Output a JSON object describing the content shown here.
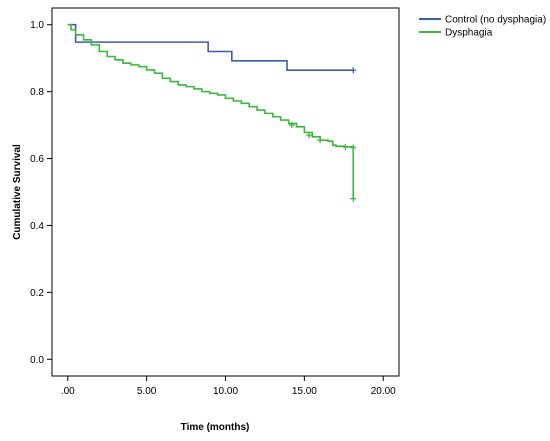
{
  "chart_data": {
    "type": "line",
    "subtype": "kaplan-meier-step",
    "xlabel": "Time (months)",
    "ylabel": "Cumulative Survival",
    "xlim": [
      -1,
      21
    ],
    "ylim": [
      -0.05,
      1.05
    ],
    "x_ticks": [
      0,
      5,
      10,
      15,
      20
    ],
    "x_tick_labels": [
      ".00",
      "5.00",
      "10.00",
      "15.00",
      "20.00"
    ],
    "y_ticks": [
      0.0,
      0.2,
      0.4,
      0.6,
      0.8,
      1.0
    ],
    "y_tick_labels": [
      "0.0",
      "0.2",
      "0.4",
      "0.6",
      "0.8",
      "1.0"
    ],
    "grid": false,
    "legend_position": "top-right, outside plot",
    "series": [
      {
        "name": "Control (no dysphagia)",
        "color": "#3a5db0",
        "x": [
          0,
          0.5,
          0.5,
          8.9,
          8.9,
          10.4,
          10.4,
          13.9,
          13.9,
          18.1
        ],
        "y": [
          1.0,
          1.0,
          0.948,
          0.948,
          0.92,
          0.92,
          0.892,
          0.892,
          0.864,
          0.864
        ],
        "censored": [
          {
            "x": 18.1,
            "y": 0.864
          }
        ]
      },
      {
        "name": "Dysphagia",
        "color": "#3cb83c",
        "x": [
          0,
          0.2,
          0.5,
          1.0,
          1.5,
          2.0,
          2.5,
          3.0,
          3.5,
          4.0,
          4.5,
          5.0,
          5.5,
          6.0,
          6.5,
          7.0,
          7.5,
          8.0,
          8.5,
          9.0,
          9.5,
          10.0,
          10.5,
          11.0,
          11.5,
          12.0,
          12.5,
          13.0,
          13.5,
          14.0,
          14.5,
          15.0,
          15.5,
          16.0,
          16.5,
          16.8,
          17.0,
          17.5,
          18.0,
          18.1,
          18.1
        ],
        "y": [
          1.0,
          0.985,
          0.97,
          0.955,
          0.94,
          0.92,
          0.905,
          0.895,
          0.885,
          0.88,
          0.875,
          0.865,
          0.855,
          0.84,
          0.83,
          0.82,
          0.815,
          0.808,
          0.8,
          0.795,
          0.79,
          0.78,
          0.772,
          0.765,
          0.755,
          0.745,
          0.735,
          0.725,
          0.715,
          0.705,
          0.695,
          0.678,
          0.665,
          0.655,
          0.652,
          0.64,
          0.637,
          0.635,
          0.633,
          0.633,
          0.48
        ],
        "censored": [
          {
            "x": 14.2,
            "y": 0.7
          },
          {
            "x": 15.3,
            "y": 0.67
          },
          {
            "x": 16.0,
            "y": 0.655
          },
          {
            "x": 17.6,
            "y": 0.635
          },
          {
            "x": 18.1,
            "y": 0.633
          },
          {
            "x": 18.1,
            "y": 0.48
          }
        ]
      }
    ]
  }
}
